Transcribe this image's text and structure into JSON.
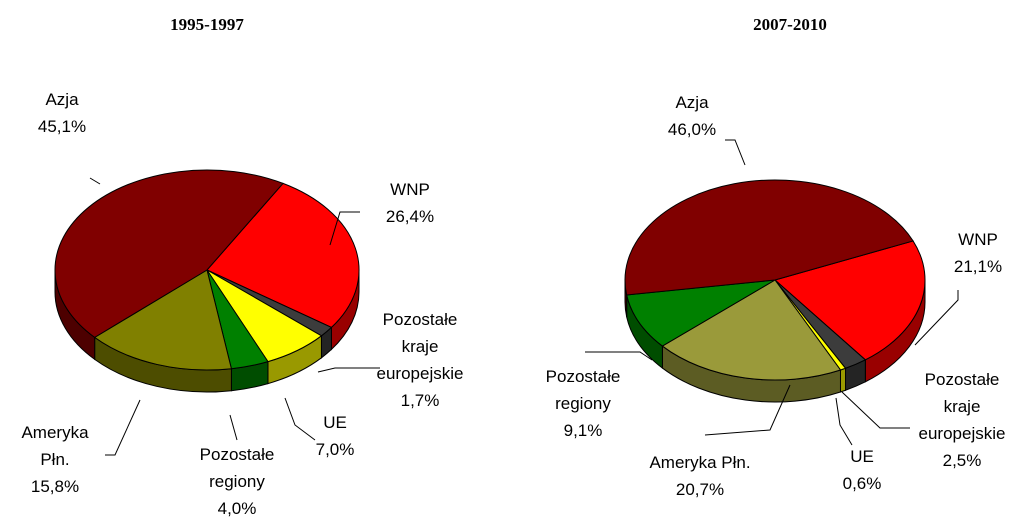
{
  "chart_data": [
    {
      "type": "pie",
      "title": "1995-1997",
      "categories": [
        "WNP",
        "Pozostałe kraje europejskie",
        "UE",
        "Pozostałe regiony",
        "Ameryka Płn.",
        "Azja"
      ],
      "values": [
        26.4,
        1.7,
        7.0,
        4.0,
        15.8,
        45.1
      ],
      "value_labels": [
        "26,4%",
        "1,7%",
        "7,0%",
        "4,0%",
        "15,8%",
        "45,1%"
      ],
      "colors": [
        "#ff0000",
        "#3c3c3c",
        "#ffff00",
        "#008000",
        "#808000",
        "#800000"
      ]
    },
    {
      "type": "pie",
      "title": "2007-2010",
      "categories": [
        "WNP",
        "Pozostałe kraje europejskie",
        "UE",
        "Ameryka Płn.",
        "Pozostałe regiony",
        "Azja"
      ],
      "values": [
        21.1,
        2.5,
        0.6,
        20.7,
        9.1,
        46.0
      ],
      "value_labels": [
        "21,1%",
        "2,5%",
        "0,6%",
        "20,7%",
        "9,1%",
        "46,0%"
      ],
      "colors": [
        "#ff0000",
        "#3c3c3c",
        "#ffff00",
        "#9a9a3a",
        "#008000",
        "#800000"
      ]
    }
  ]
}
